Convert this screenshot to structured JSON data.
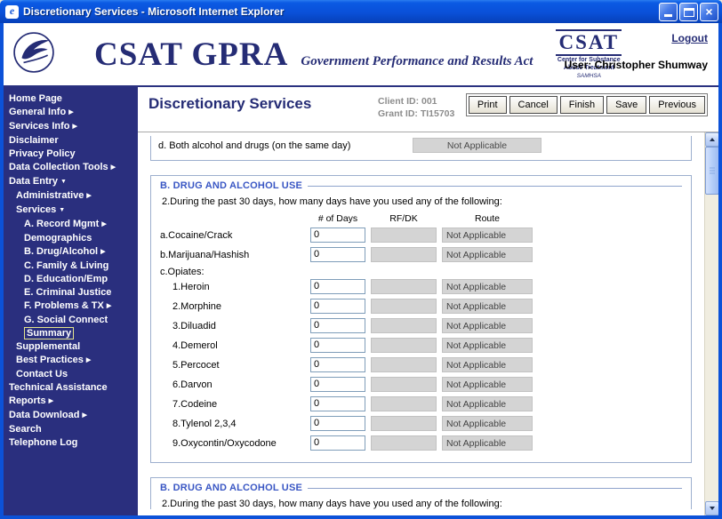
{
  "window": {
    "title": "Discretionary Services - Microsoft Internet Explorer"
  },
  "header": {
    "brand": "CSAT GPRA",
    "tagline": "Government Performance and Results Act",
    "logout_label": "Logout",
    "user_label": "User: Christopher Shumway",
    "csat_logo": {
      "name": "CSAT",
      "subtitle1": "Center for Substance",
      "subtitle2": "Abuse Treatment",
      "subtitle3": "SAMHSA"
    }
  },
  "sidebar": {
    "items": [
      {
        "label": "Home Page",
        "indent": 0
      },
      {
        "label": "General Info",
        "indent": 0,
        "arrow": "right"
      },
      {
        "label": "Services Info",
        "indent": 0,
        "arrow": "right"
      },
      {
        "label": "Disclaimer",
        "indent": 0
      },
      {
        "label": "Privacy Policy",
        "indent": 0
      },
      {
        "label": "Data Collection Tools",
        "indent": 0,
        "arrow": "right"
      },
      {
        "label": "Data Entry",
        "indent": 0,
        "arrow": "down"
      },
      {
        "label": "Administrative",
        "indent": 1,
        "arrow": "right"
      },
      {
        "label": "Services",
        "indent": 1,
        "arrow": "down"
      },
      {
        "label": "A. Record Mgmt",
        "indent": 2,
        "arrow": "right"
      },
      {
        "label": "Demographics",
        "indent": 2
      },
      {
        "label": "B. Drug/Alcohol",
        "indent": 2,
        "arrow": "right"
      },
      {
        "label": "C. Family & Living",
        "indent": 2
      },
      {
        "label": "D. Education/Emp",
        "indent": 2
      },
      {
        "label": "E. Criminal Justice",
        "indent": 2
      },
      {
        "label": "F. Problems & TX",
        "indent": 2,
        "arrow": "right"
      },
      {
        "label": "G. Social Connect",
        "indent": 2
      },
      {
        "label": "Summary",
        "indent": 2,
        "highlight": true
      },
      {
        "label": "Supplemental",
        "indent": 1
      },
      {
        "label": "Best Practices",
        "indent": 1,
        "arrow": "right"
      },
      {
        "label": "Contact Us",
        "indent": 1
      },
      {
        "label": "Technical Assistance",
        "indent": 0
      },
      {
        "label": "Reports",
        "indent": 0,
        "arrow": "right"
      },
      {
        "label": "Data Download",
        "indent": 0,
        "arrow": "right"
      },
      {
        "label": "Search",
        "indent": 0
      },
      {
        "label": "Telephone Log",
        "indent": 0
      }
    ]
  },
  "main": {
    "page_title": "Discretionary Services",
    "client_id": "Client ID: 001",
    "grant_id": "Grant ID: TI15703",
    "buttons": [
      "Print",
      "Cancel",
      "Finish",
      "Save",
      "Previous"
    ],
    "prev_section_row": {
      "label": "d.  Both alcohol and drugs (on the same day)",
      "value": "Not Applicable"
    },
    "section_b": {
      "title": "B. DRUG AND ALCOHOL USE",
      "question": "2.During the past 30 days, how many days have you used any of the following:",
      "columns": [
        "# of Days",
        "RF/DK",
        "Route"
      ],
      "rows": [
        {
          "label": "a.Cocaine/Crack",
          "days": "0",
          "rfdk": "",
          "route": "Not Applicable"
        },
        {
          "label": "b.Marijuana/Hashish",
          "days": "0",
          "rfdk": "",
          "route": "Not Applicable"
        },
        {
          "label": "c.Opiates:",
          "group": true
        },
        {
          "label": "1.Heroin",
          "indent": 1,
          "days": "0",
          "rfdk": "",
          "route": "Not Applicable"
        },
        {
          "label": "2.Morphine",
          "indent": 1,
          "days": "0",
          "rfdk": "",
          "route": "Not Applicable"
        },
        {
          "label": "3.Diluadid",
          "indent": 1,
          "days": "0",
          "rfdk": "",
          "route": "Not Applicable"
        },
        {
          "label": "4.Demerol",
          "indent": 1,
          "days": "0",
          "rfdk": "",
          "route": "Not Applicable"
        },
        {
          "label": "5.Percocet",
          "indent": 1,
          "days": "0",
          "rfdk": "",
          "route": "Not Applicable"
        },
        {
          "label": "6.Darvon",
          "indent": 1,
          "days": "0",
          "rfdk": "",
          "route": "Not Applicable"
        },
        {
          "label": "7.Codeine",
          "indent": 1,
          "days": "0",
          "rfdk": "",
          "route": "Not Applicable"
        },
        {
          "label": "8.Tylenol 2,3,4",
          "indent": 1,
          "days": "0",
          "rfdk": "",
          "route": "Not Applicable"
        },
        {
          "label": "9.Oxycontin/Oxycodone",
          "indent": 1,
          "days": "0",
          "rfdk": "",
          "route": "Not Applicable"
        }
      ]
    },
    "section_b_next": {
      "title": "B. DRUG AND ALCOHOL USE",
      "question": "2.During the past 30 days, how many days have you used any of the following:"
    }
  },
  "colors": {
    "titlebar_blue": "#0B5AE4",
    "sidebar_navy": "#2A2F7E",
    "brand_navy": "#252C75",
    "section_blue": "#3A57C4",
    "disabled_gray": "#D4D4D4"
  }
}
